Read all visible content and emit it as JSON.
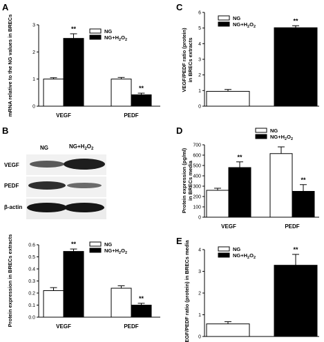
{
  "panels": {
    "a": "A",
    "b": "B",
    "c": "C",
    "d": "D",
    "e": "E"
  },
  "blot": {
    "lanes": [
      "NG",
      "NG+H2O2"
    ],
    "rows": [
      "VEGF",
      "PEDF",
      "β-actin"
    ]
  },
  "chart_data": [
    {
      "id": "A",
      "type": "bar",
      "categories": [
        "VEGF",
        "PEDF"
      ],
      "series": [
        {
          "name": "NG",
          "values": [
            1.0,
            1.0
          ],
          "errors": [
            0.05,
            0.06
          ],
          "color": "#ffffff"
        },
        {
          "name": "NG+H2O2",
          "values": [
            2.5,
            0.42
          ],
          "errors": [
            0.17,
            0.06
          ],
          "color": "#000000"
        }
      ],
      "ylabel": "mRNA relative to the NG values in BRECs",
      "ylim": [
        0,
        3
      ],
      "yticks": [
        0,
        1,
        2,
        3
      ],
      "significance": [
        "**",
        "**"
      ],
      "legend": "top-right"
    },
    {
      "id": "B",
      "type": "bar",
      "categories": [
        "VEGF",
        "PEDF"
      ],
      "series": [
        {
          "name": "NG",
          "values": [
            0.22,
            0.24
          ],
          "errors": [
            0.025,
            0.02
          ],
          "color": "#ffffff"
        },
        {
          "name": "NG+H2O2",
          "values": [
            0.545,
            0.1
          ],
          "errors": [
            0.02,
            0.015
          ],
          "color": "#000000"
        }
      ],
      "ylabel": "Protein expression in BRECs extracts",
      "ylim": [
        0,
        0.6
      ],
      "yticks": [
        "0.0",
        "0.1",
        "0.2",
        "0.3",
        "0.4",
        "0.5",
        "0.6"
      ],
      "significance": [
        "**",
        "**"
      ],
      "legend": "top-right"
    },
    {
      "id": "C",
      "type": "bar",
      "categories": [
        ""
      ],
      "series": [
        {
          "name": "NG",
          "values": [
            0.95
          ],
          "errors": [
            0.12
          ],
          "color": "#ffffff"
        },
        {
          "name": "NG+H2O2",
          "values": [
            5.02
          ],
          "errors": [
            0.13
          ],
          "color": "#000000"
        }
      ],
      "ylabel": "VEGF/PEDF ratio (protein) in BRECs extracts",
      "ylim": [
        0,
        6
      ],
      "yticks": [
        0,
        1,
        2,
        3,
        4,
        5,
        6
      ],
      "significance": [
        "**"
      ],
      "legend": "top-left"
    },
    {
      "id": "D",
      "type": "bar",
      "categories": [
        "VEGF",
        "PEDF"
      ],
      "series": [
        {
          "name": "NG",
          "values": [
            260,
            615
          ],
          "errors": [
            20,
            65
          ],
          "color": "#ffffff"
        },
        {
          "name": "NG+H2O2",
          "values": [
            480,
            250
          ],
          "errors": [
            55,
            65
          ],
          "color": "#000000"
        }
      ],
      "ylabel": "Protein expression (pg/ml) in BRECs media",
      "ylim": [
        0,
        700
      ],
      "yticks": [
        0,
        100,
        200,
        300,
        400,
        500,
        600,
        700
      ],
      "significance": [
        "**",
        "**"
      ],
      "legend": "top-right"
    },
    {
      "id": "E",
      "type": "bar",
      "categories": [
        ""
      ],
      "series": [
        {
          "name": "NG",
          "values": [
            0.58
          ],
          "errors": [
            0.1
          ],
          "color": "#ffffff"
        },
        {
          "name": "NG+H2O2",
          "values": [
            3.28
          ],
          "errors": [
            0.5
          ],
          "color": "#000000"
        }
      ],
      "ylabel": "VEGF/PEDF ratio (protein) in BRECs media",
      "ylim": [
        0,
        4
      ],
      "yticks": [
        0,
        1,
        2,
        3,
        4
      ],
      "significance": [
        "**"
      ],
      "legend": "top-left"
    }
  ]
}
